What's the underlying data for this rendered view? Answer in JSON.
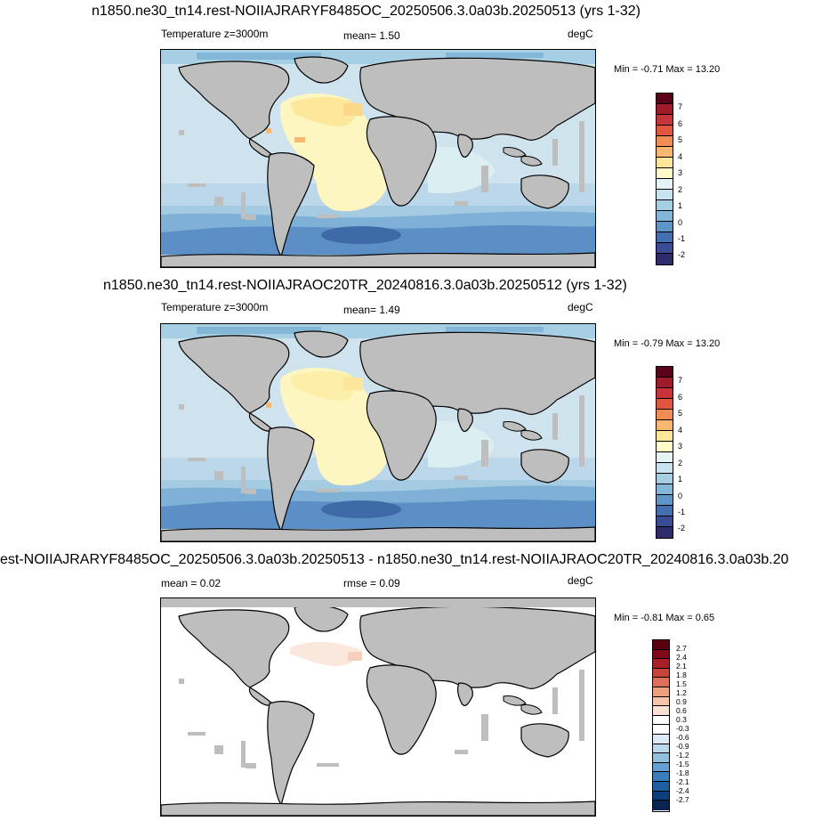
{
  "panels": [
    {
      "title": "n1850.ne30_tn14.rest-NOIIAJRARYF8485OC_20250506.3.0a03b.20250513 (yrs 1-32)",
      "left_label": "Temperature z=3000m",
      "center_label": "mean=   1.50",
      "right_label": "degC",
      "minmax": "Min =  -0.71 Max =  13.20",
      "colorbar_labels": [
        "7",
        "6",
        "5",
        "4",
        "3",
        "2",
        "1",
        "0",
        "-1",
        "-2"
      ]
    },
    {
      "title": "n1850.ne30_tn14.rest-NOIIAJRAOC20TR_20240816.3.0a03b.20250512 (yrs 1-32)",
      "left_label": "Temperature z=3000m",
      "center_label": "mean=   1.49",
      "right_label": "degC",
      "minmax": "Min =  -0.79 Max =  13.20",
      "colorbar_labels": [
        "7",
        "6",
        "5",
        "4",
        "3",
        "2",
        "1",
        "0",
        "-1",
        "-2"
      ]
    },
    {
      "title": "est-NOIIAJRARYF8485OC_20250506.3.0a03b.20250513 - n1850.ne30_tn14.rest-NOIIAJRAOC20TR_20240816.3.0a03b.20",
      "left_label": "mean =   0.02",
      "center_label": "rmse =   0.09",
      "right_label": "degC",
      "minmax": "Min =  -0.81 Max =   0.65",
      "colorbar_labels": [
        "2.7",
        "2.4",
        "2.1",
        "1.8",
        "1.5",
        "1.2",
        "0.9",
        "0.6",
        "0.3",
        "-0.3",
        "-0.6",
        "-0.9",
        "-1.2",
        "-1.5",
        "-1.8",
        "-2.1",
        "-2.4",
        "-2.7"
      ]
    }
  ],
  "colors": {
    "land": "#bebebe",
    "coastline": "#000000",
    "temp_scale": [
      "#5b0019",
      "#a11a2b",
      "#c8323a",
      "#e2553f",
      "#f28c55",
      "#f9b872",
      "#fde59a",
      "#fffbc8",
      "#e6f3f5",
      "#c9e4ee",
      "#a7cfe3",
      "#84b6d7",
      "#5f95c6",
      "#436fb1",
      "#3a4a93",
      "#2e2b6d"
    ],
    "diff_scale": [
      "#08254f",
      "#0d3f7c",
      "#1d5fa0",
      "#3a7fbc",
      "#659fcf",
      "#93bfdf",
      "#bcd7ea",
      "#dde9f3",
      "#ffffff",
      "#ffffff",
      "#fbe1d3",
      "#f6c4ab",
      "#ee9f80",
      "#de7059",
      "#c6453b",
      "#a82028",
      "#800818",
      "#5a0010"
    ]
  }
}
